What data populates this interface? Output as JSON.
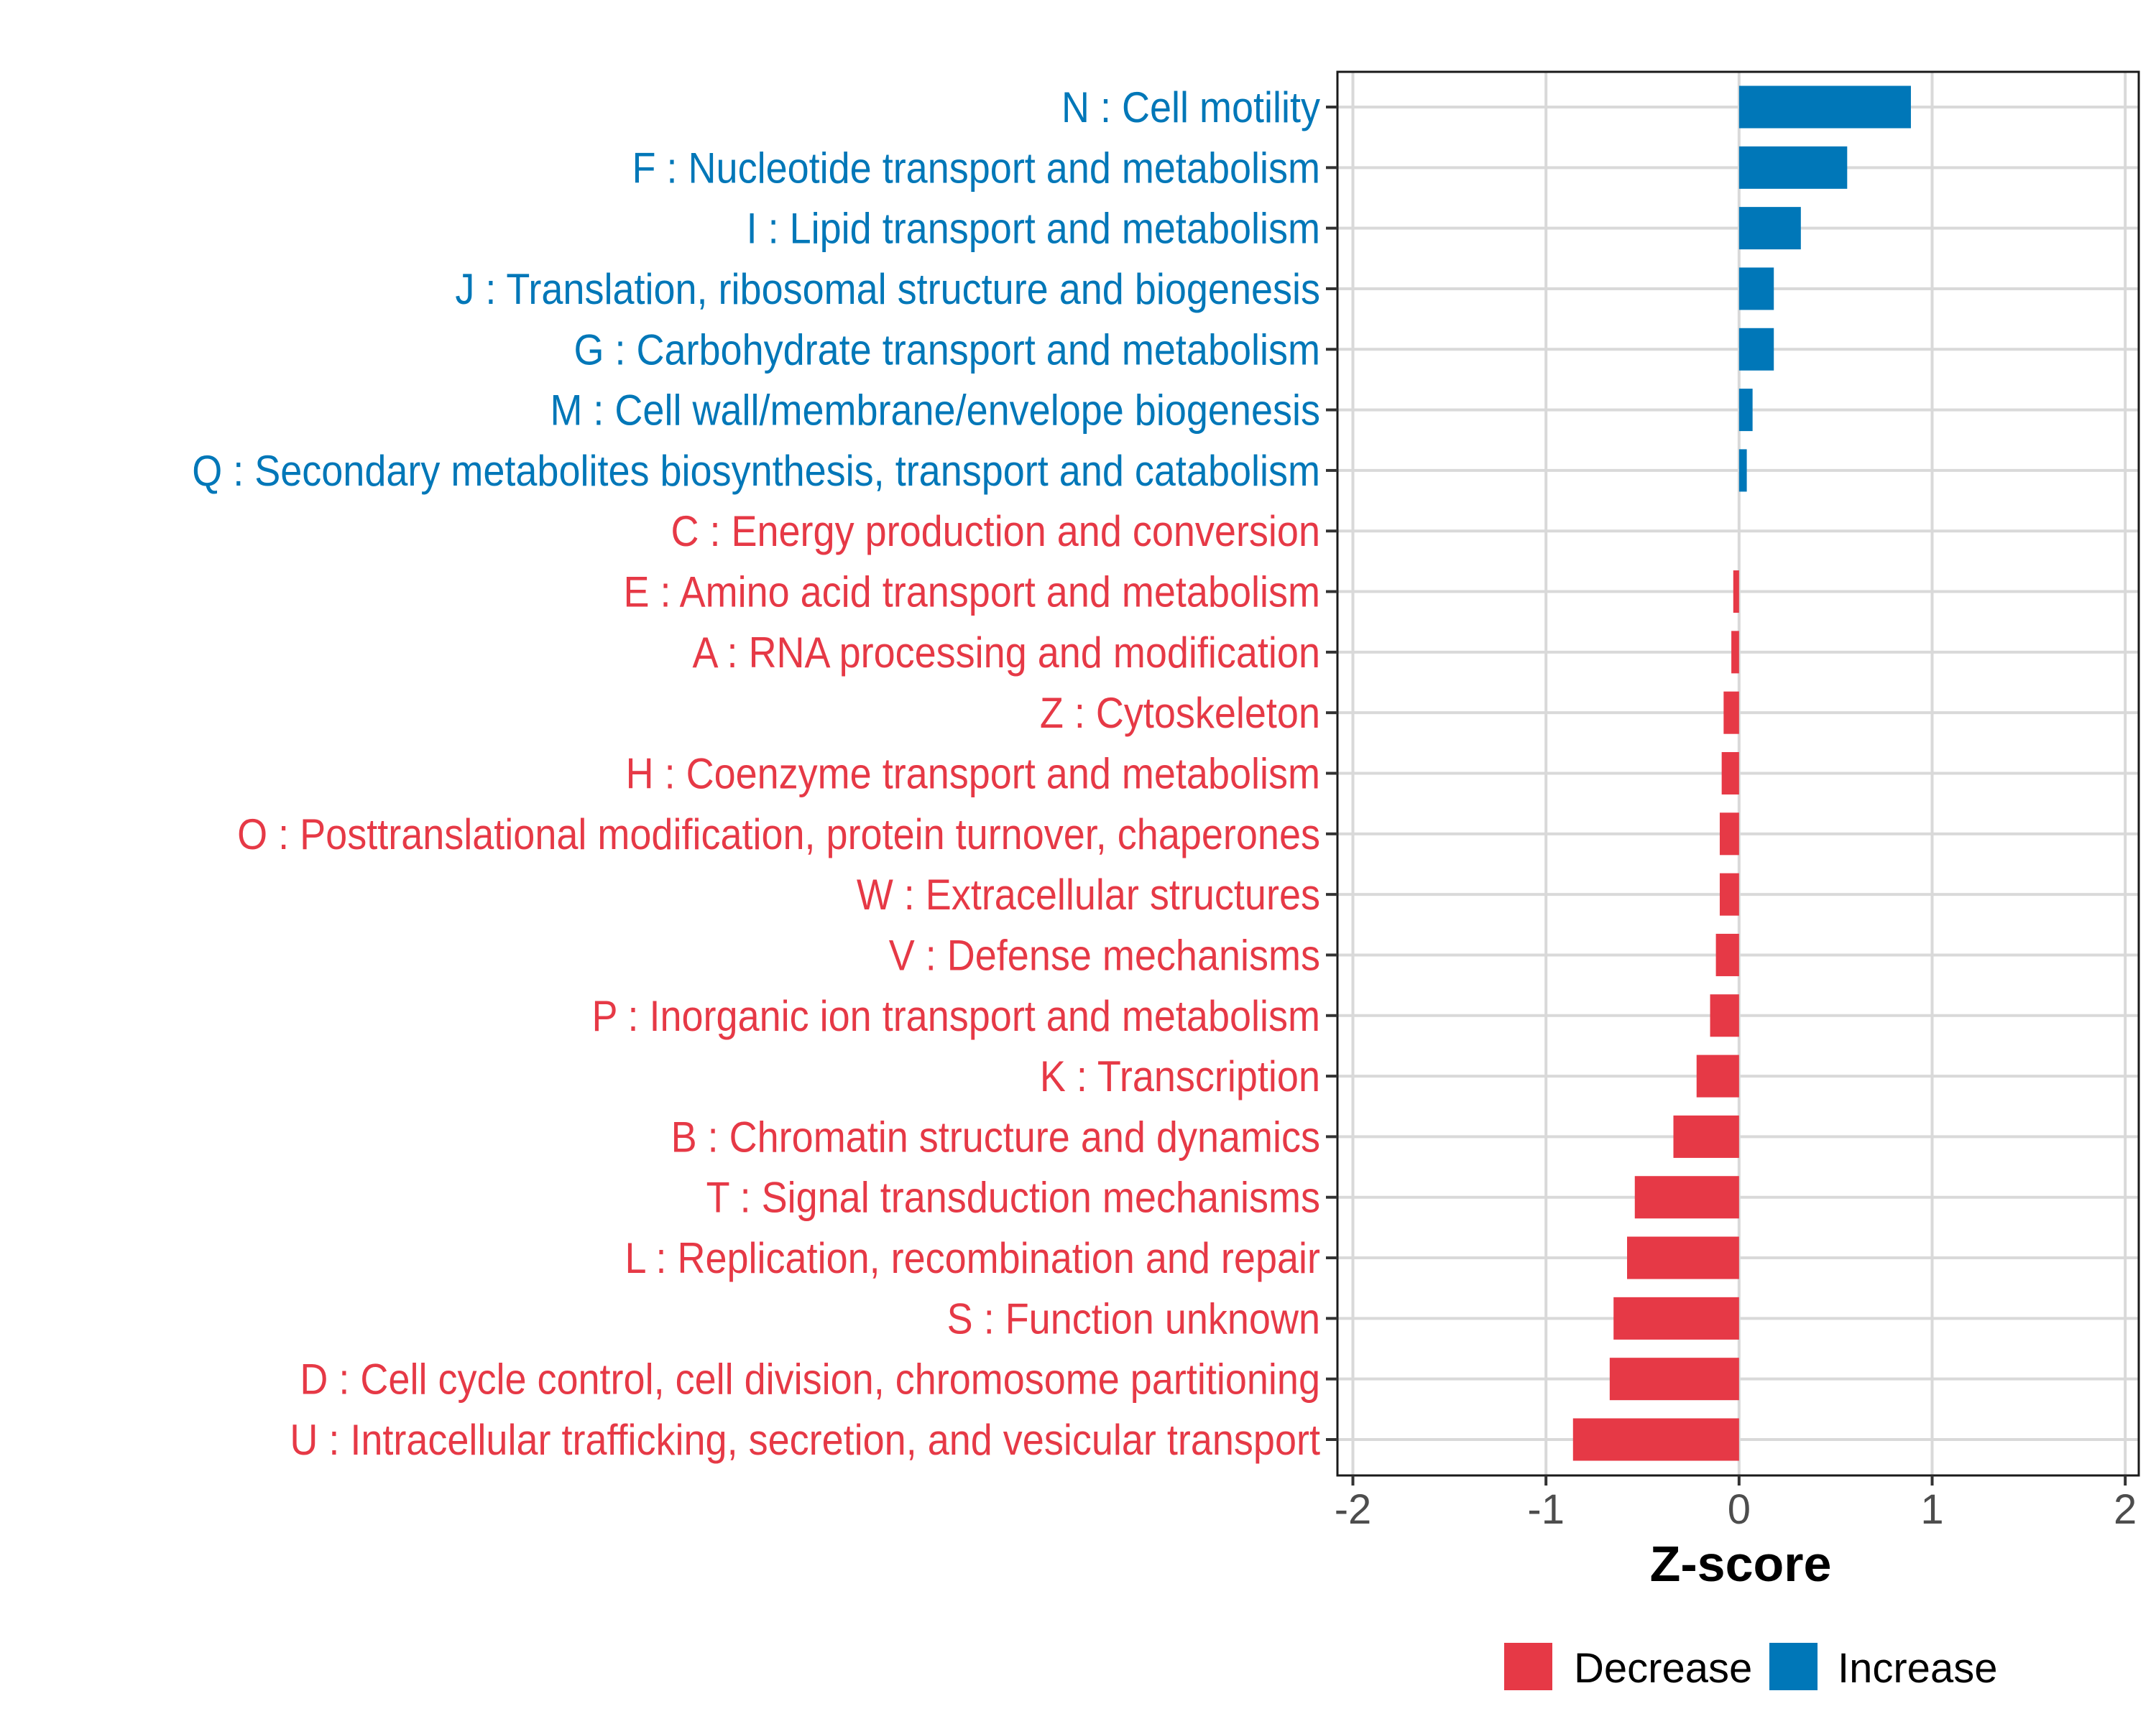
{
  "chart_data": {
    "type": "bar",
    "orientation": "horizontal",
    "title": "",
    "xlabel": "Z-score",
    "ylabel": "",
    "xlim": [
      -2.08,
      2.07
    ],
    "xticks": [
      -2,
      -1,
      0,
      1,
      2
    ],
    "xtick_labels": [
      "-2",
      "-1",
      "0",
      "1",
      "2"
    ],
    "grid": true,
    "legend_position": "bottom",
    "colors": {
      "Decrease": "#E63946",
      "Increase": "#0077B8"
    },
    "legend": [
      {
        "label": "Decrease",
        "color": "#E63946"
      },
      {
        "label": "Increase",
        "color": "#0077B8"
      }
    ],
    "categories": [
      "N : Cell motility",
      "F : Nucleotide transport and metabolism",
      "I : Lipid transport and metabolism",
      "J : Translation, ribosomal structure and biogenesis",
      "G : Carbohydrate transport and metabolism",
      "M : Cell wall/membrane/envelope biogenesis",
      "Q : Secondary metabolites biosynthesis, transport and catabolism",
      "C : Energy production and conversion",
      "E : Amino acid transport and metabolism",
      "A : RNA processing and modification",
      "Z : Cytoskeleton",
      "H : Coenzyme transport and metabolism",
      "O : Posttranslational modification, protein turnover, chaperones",
      "W : Extracellular structures",
      "V : Defense mechanisms",
      "P : Inorganic ion transport and metabolism",
      "K : Transcription",
      "B : Chromatin structure and dynamics",
      "T : Signal transduction mechanisms",
      "L : Replication, recombination and repair",
      "S : Function unknown",
      "D : Cell cycle control, cell division, chromosome partitioning",
      "U : Intracellular trafficking, secretion, and vesicular transport"
    ],
    "values": [
      0.89,
      0.56,
      0.32,
      0.18,
      0.18,
      0.07,
      0.04,
      0.0,
      -0.03,
      -0.04,
      -0.08,
      -0.09,
      -0.1,
      -0.1,
      -0.12,
      -0.15,
      -0.22,
      -0.34,
      -0.54,
      -0.58,
      -0.65,
      -0.67,
      -0.86
    ],
    "groups": [
      "Increase",
      "Increase",
      "Increase",
      "Increase",
      "Increase",
      "Increase",
      "Increase",
      "Decrease",
      "Decrease",
      "Decrease",
      "Decrease",
      "Decrease",
      "Decrease",
      "Decrease",
      "Decrease",
      "Decrease",
      "Decrease",
      "Decrease",
      "Decrease",
      "Decrease",
      "Decrease",
      "Decrease",
      "Decrease"
    ]
  }
}
